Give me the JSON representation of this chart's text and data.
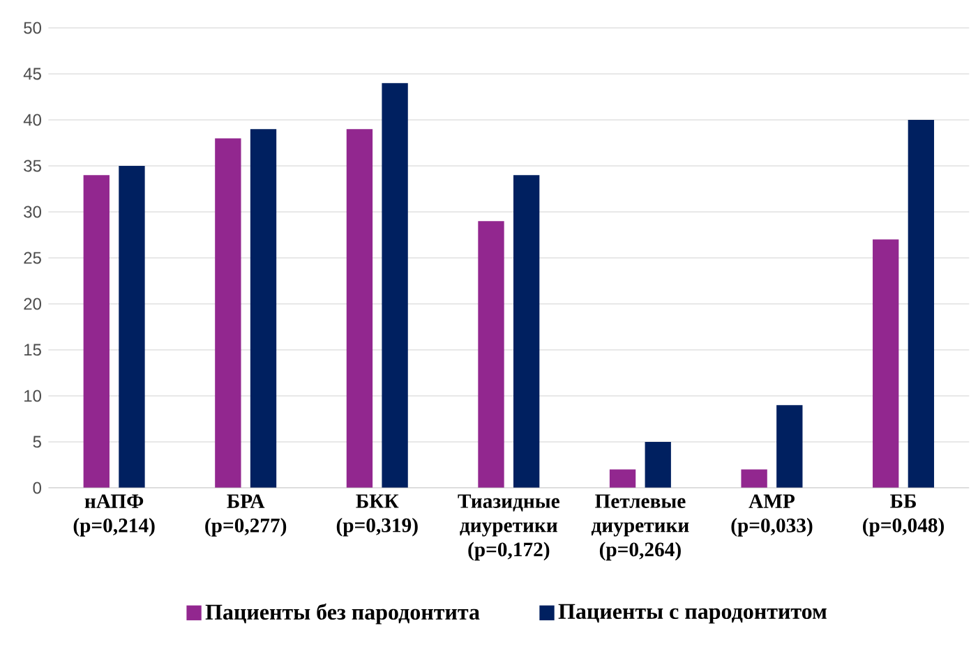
{
  "chart_data": {
    "type": "bar",
    "categories": [
      "нАПФ (р=0,214)",
      "БРА (р=0,277)",
      "БКК (р=0,319)",
      "Тиазидные диуретики (р=0,172)",
      "Петлевые диуретики (р=0,264)",
      "АМР (р=0,033)",
      "ББ (р=0,048)"
    ],
    "series": [
      {
        "name": "Пациенты без пародонтита",
        "color": "#92278f",
        "values": [
          34,
          38,
          39,
          29,
          2,
          2,
          27
        ]
      },
      {
        "name": "Пациенты с пародонтитом",
        "color": "#002060",
        "values": [
          35,
          39,
          44,
          34,
          5,
          9,
          40
        ]
      }
    ],
    "ylim": [
      0,
      50
    ],
    "yticks": [
      0,
      5,
      10,
      15,
      20,
      25,
      30,
      35,
      40,
      45,
      50
    ],
    "grid": "y",
    "legend": "bottom"
  }
}
